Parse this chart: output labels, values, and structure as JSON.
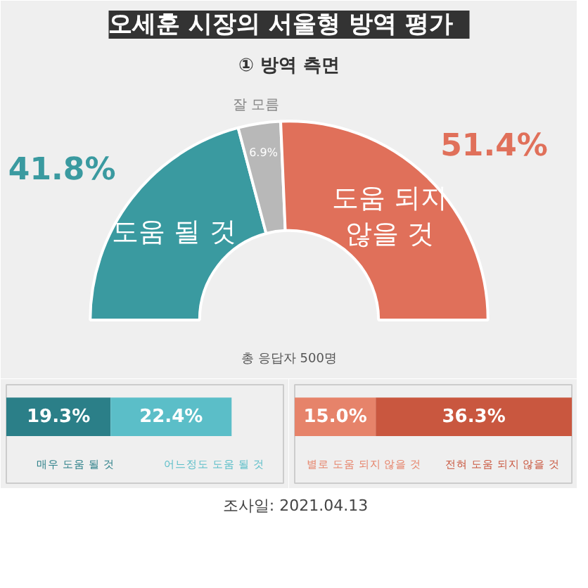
{
  "chart_data": [
    {
      "type": "donut",
      "title": "오세훈 시장의 서울형 방역 평가",
      "subtitle": "① 방역 측면",
      "categories": [
        "도움 될 것",
        "잘 모름",
        "도움 되지 않을 것"
      ],
      "values": [
        41.8,
        6.9,
        51.4
      ],
      "value_labels": [
        "41.8%",
        "6.9%",
        "51.4%"
      ],
      "colors": [
        "#3a9aa0",
        "#b8b8b8",
        "#e0705a"
      ],
      "annotations": [
        "총 응답자 500명",
        "조사일: 2021.04.13"
      ]
    },
    {
      "type": "bar",
      "orientation": "horizontal",
      "stacked": true,
      "categories": [
        null
      ],
      "tick_labels": false,
      "series": [
        {
          "name": "매우 도움 될 것",
          "color": "#2b7f88",
          "values": [
            19.3
          ],
          "value_labels": [
            "19.3%"
          ]
        },
        {
          "name": "어느정도 도움 될 것",
          "color": "#5bbec8",
          "values": [
            22.4
          ],
          "value_labels": [
            "22.4%"
          ]
        }
      ]
    },
    {
      "type": "bar",
      "orientation": "horizontal",
      "stacked": true,
      "categories": [
        null
      ],
      "tick_labels": false,
      "series": [
        {
          "name": "별로 도움 되지 않을 것",
          "color": "#e6836a",
          "values": [
            15.0
          ],
          "value_labels": [
            "15.0%"
          ]
        },
        {
          "name": "전혀 도움 되지 않을 것",
          "color": "#c9573f",
          "values": [
            36.3
          ],
          "value_labels": [
            "36.3%"
          ]
        }
      ]
    }
  ]
}
